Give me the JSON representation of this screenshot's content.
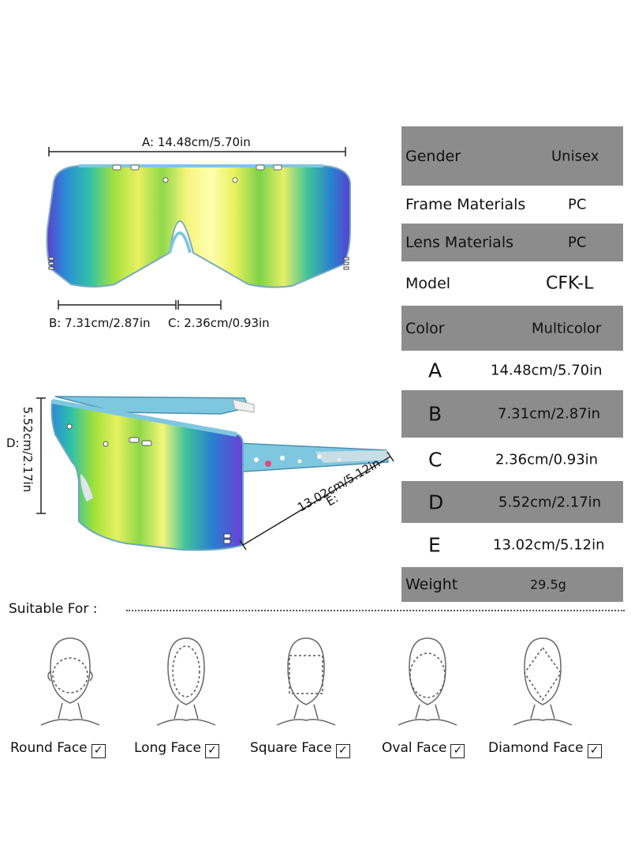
{
  "dimensions": {
    "A": "A: 14.48cm/5.70in",
    "B": "B: 7.31cm/2.87in",
    "C": "C: 2.36cm/0.93in",
    "D_prefix": "D:",
    "D_rotated": "5.52cm/2.17in",
    "E": "E:",
    "E_value": "13.02cm/5.12in"
  },
  "specs": [
    {
      "key": "Gender",
      "value": "Unisex"
    },
    {
      "key": "Frame Materials",
      "value": "PC"
    },
    {
      "key": "Lens Materials",
      "value": "PC"
    },
    {
      "key": "Model",
      "value": "CFK-L"
    },
    {
      "key": "Color",
      "value": "Multicolor"
    },
    {
      "key": "A",
      "value": "14.48cm/5.70in"
    },
    {
      "key": "B",
      "value": "7.31cm/2.87in"
    },
    {
      "key": "C",
      "value": "2.36cm/0.93in"
    },
    {
      "key": "D",
      "value": "5.52cm/2.17in"
    },
    {
      "key": "E",
      "value": "13.02cm/5.12in"
    },
    {
      "key": "Weight",
      "value": "29.5g"
    }
  ],
  "suitable": {
    "title": "Suitable For :",
    "faces": [
      {
        "label": "Round Face"
      },
      {
        "label": "Long Face"
      },
      {
        "label": "Square Face"
      },
      {
        "label": "Oval Face"
      },
      {
        "label": "Diamond Face"
      }
    ],
    "check_glyph": "✓"
  },
  "colors": {
    "frame_blue": "#6ec6e6",
    "table_gray": "#8c8c8c",
    "lens_green": "#9fe03a",
    "lens_yellow": "#f3f56a",
    "lens_teal": "#2fc0a8",
    "lens_purple": "#6a3fd6"
  }
}
